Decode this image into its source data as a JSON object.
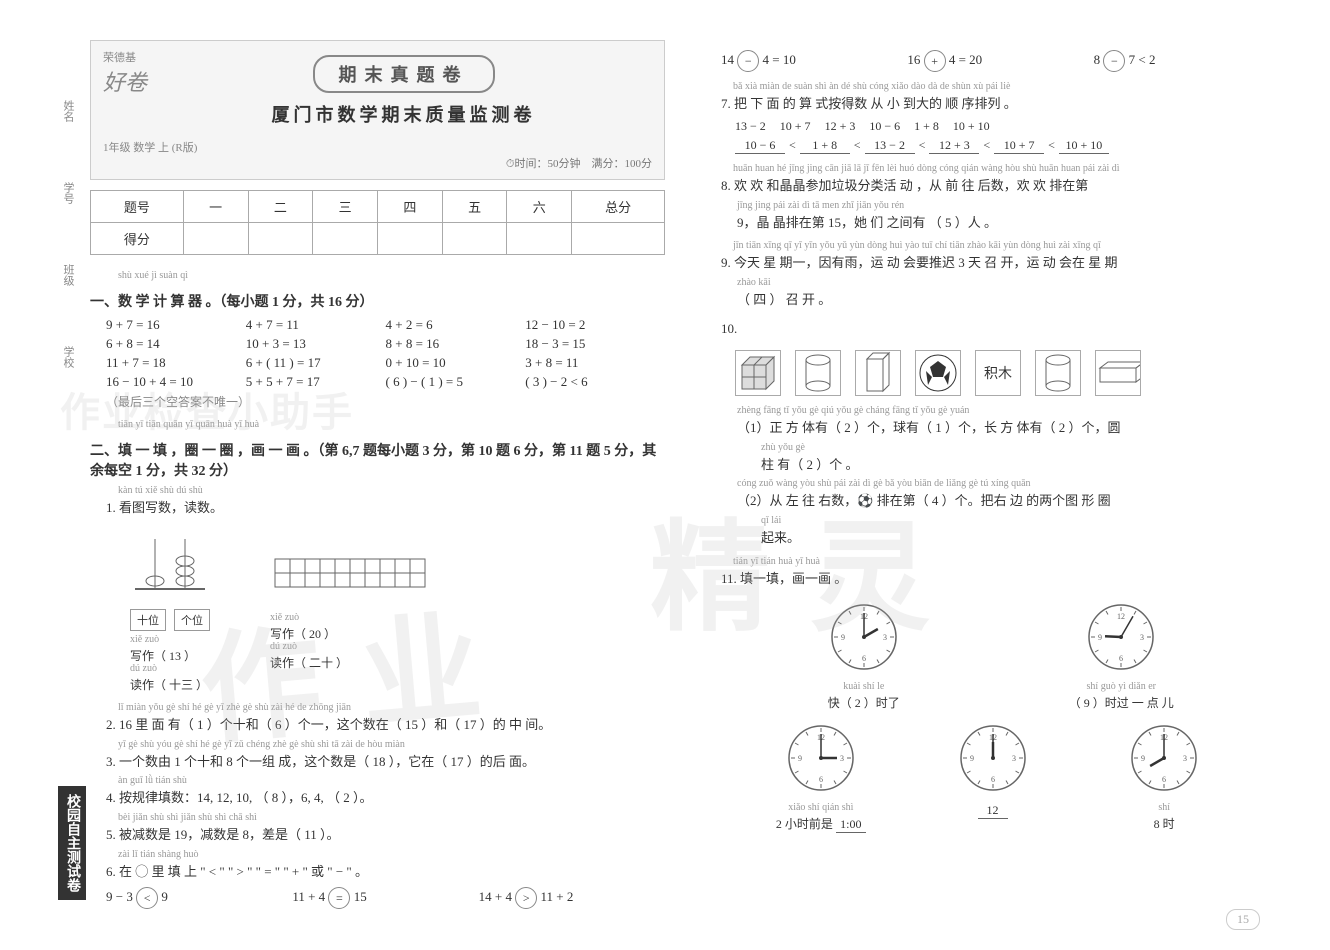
{
  "watermarks": {
    "w1": "作业",
    "w2": "精灵",
    "w3": "作业检查小助手"
  },
  "left_tabs": {
    "t1": "姓名",
    "t2": "学号",
    "t3": "班级",
    "t4": "学校",
    "box": "校园自主测试卷"
  },
  "header": {
    "brand": "荣德基",
    "brand2": "好卷",
    "title": "期末真题卷",
    "subtitle": "厦门市数学期末质量监测卷",
    "grade": "1年级 数学 上 (R版)",
    "meta": "⏱时间：50分钟　满分：100分"
  },
  "score_table": {
    "headers": [
      "题号",
      "一",
      "二",
      "三",
      "四",
      "五",
      "六",
      "总分"
    ],
    "row2": "得分"
  },
  "section1": {
    "pinyin": "shù xué jì suàn qì",
    "title": "一、数 学 计 算 器 。（每小题 1 分，共 16 分）",
    "rows": [
      [
        "9 + 7 = 16",
        "4 + 7 = 11",
        "4 + 2 = 6",
        "12 − 10 = 2"
      ],
      [
        "6 + 8 = 14",
        "10 + 3 = 13",
        "8 + 8 = 16",
        "18 − 3 = 15"
      ],
      [
        "11 + 7 = 18",
        "6 + (  11  ) = 17",
        "0 + 10 = 10",
        "3 + 8 = 11"
      ],
      [
        "16 − 10 + 4 = 10",
        "5 + 5 + 7 = 17",
        "(  6  ) − (  1  ) = 5",
        "(  3  ) − 2 < 6"
      ]
    ],
    "note": "（最后三个空答案不唯一）"
  },
  "section2": {
    "pinyin": "tiān yī tiān  quān yī quān  huà yī huà",
    "title": "二、填 一 填 ，圈 一 圈 ，画 一 画 。（第 6,7 题每小题 3 分，第 10 题 6 分，第 11 题 5 分，其余每空 1 分，共 32 分）",
    "q1": {
      "pinyin": "kàn tú xiě shù  dú shù",
      "text": "1. 看图写数，读数。",
      "place1": "十位",
      "place2": "个位",
      "xie_p": "xiě zuò",
      "xie": "写作",
      "du_p": "dú zuò",
      "du": "读作",
      "v1w": "13",
      "v1r": "十三",
      "v2w": "20",
      "v2r": "二十"
    },
    "q2": {
      "pinyin": "lǐ miàn yǒu        gè shí hé        gè yī zhè gè shù zài        hé        de zhōng jiān",
      "text": "2. 16 里 面 有（ 1 ）个十和（ 6 ）个一，这个数在（ 15 ）和（ 17 ）的 中 间。"
    },
    "q3": {
      "pinyin": "yī gè shù yóu  gè shí hé  gè yī zǔ chéng  zhè gè shù shì        tā zài        de hòu miàn",
      "text": "3. 一个数由 1 个十和 8 个一组 成，这个数是（ 18 ），它在（ 17 ）的后 面。"
    },
    "q4": {
      "pinyin": "àn guī lǜ tián shù",
      "text": "4. 按规律填数：14, 12, 10, （ 8 ），6, 4, （ 2 ）。"
    },
    "q5": {
      "pinyin": "bèi jiǎn shù shì     jiǎn shù shì    chā shì",
      "text": "5. 被减数是 19，减数是 8，差是（ 11 ）。"
    },
    "q6": {
      "pinyin": "zài      lǐ tián shàng                                huò",
      "text": "6. 在 ◯ 里 填 上 \" < \" \" > \" \" = \" \" + \" 或 \" − \" 。",
      "row1": [
        {
          "l": "9 − 3",
          "op": "<",
          "r": "9"
        },
        {
          "l": "11 + 4",
          "op": "=",
          "r": "15"
        },
        {
          "l": "14 + 4",
          "op": ">",
          "r": "11 + 2"
        }
      ],
      "row2": [
        {
          "l": "14",
          "op": "−",
          "r": "4 = 10"
        },
        {
          "l": "16",
          "op": "+",
          "r": "4 = 20"
        },
        {
          "l": "8",
          "op": "−",
          "r": "7 < 2"
        }
      ]
    },
    "q7": {
      "pinyin": "bǎ xià miàn de suàn shì àn dé shù cóng xiǎo dào dà de shùn xù pái liè",
      "text": "7. 把 下 面 的 算 式按得数 从 小 到大的 顺 序排列 。",
      "exprs": [
        "13 − 2",
        "10 + 7",
        "12 + 3",
        "10 − 6",
        "1 + 8",
        "10 + 10"
      ],
      "answer": [
        "10 − 6",
        "<",
        "1 + 8",
        "<",
        "13 − 2",
        "<",
        "12 + 3",
        "<",
        "10 + 7",
        "<",
        "10 + 10"
      ]
    },
    "q8": {
      "pinyin": "huān huan hé jīng jing cān jiā  lā  jī fēn lèi huó dòng  cóng qián wàng hòu shù  huān huan pái zài dì",
      "text": "8. 欢 欢 和晶晶参加垃圾分类活 动 ，从 前 往 后数，欢 欢 排在第",
      "line2_p": "jīng jing pái zài dì      tā men zhī jiān yǒu        rén",
      "line2": "9，晶 晶排在第 15，她 们 之间有 （ 5 ）人 。"
    },
    "q9": {
      "pinyin": "jīn tiān xīng qī yī  yīn yǒu yǔ  yùn dòng huì yào tuī chí  tiān zhào kāi  yùn dòng huì zài xīng qī",
      "text": "9. 今天 星 期一，因有雨，运 动 会要推迟 3 天 召 开，运 动 会在 星 期",
      "line2_p": "zhào kāi",
      "line2": "（ 四 ） 召 开 。"
    },
    "q10": {
      "num": "10.",
      "shapes": [
        "cube-grid",
        "cylinder",
        "cuboid",
        "soccer",
        "block-label",
        "cylinder2",
        "prism"
      ],
      "block_label": "积木",
      "s1_p": "zhèng fāng tǐ yǒu        gè  qiú yǒu        gè  cháng fāng tǐ yǒu        gè  yuán",
      "s1": "（1）正 方 体有（ 2 ）个，球有（ 1 ）个，长 方 体有（ 2 ）个，圆",
      "s1b_p": "zhù yǒu        gè",
      "s1b": "柱 有（ 2 ）个 。",
      "s2_p": "cóng zuǒ wàng yòu shù        pái zài dì        gè    bǎ yòu biān de liǎng gè tú xíng quān",
      "s2": "（2）从 左 往 右数，⚽ 排在第（ 4 ）个。把右 边 的两个图 形 圈",
      "s2b_p": "qǐ lái",
      "s2b": "起来。"
    },
    "q11": {
      "pinyin": "tián yī tián  huà yī huà",
      "text": "11. 填一填，画一画 。",
      "clocks_r1": [
        {
          "h": 2,
          "m": 0,
          "lp": "kuài        shí le",
          "label": "快（ 2 ）时了"
        },
        {
          "h": 9,
          "m": 5,
          "lp": "shí guò yì diǎn er",
          "label": "（ 9 ）时过 一 点 儿"
        }
      ],
      "clocks_r2": [
        {
          "h": 3,
          "m": 0,
          "lp": "xiǎo shí qián shì",
          "label": "2 小时前是",
          "ans": "1:00"
        },
        {
          "h": 12,
          "m": 0,
          "label": "",
          "ans": "12"
        },
        {
          "h": 8,
          "m": 0,
          "lp": "shí",
          "label": "8 时"
        }
      ]
    }
  },
  "page_num": "15"
}
